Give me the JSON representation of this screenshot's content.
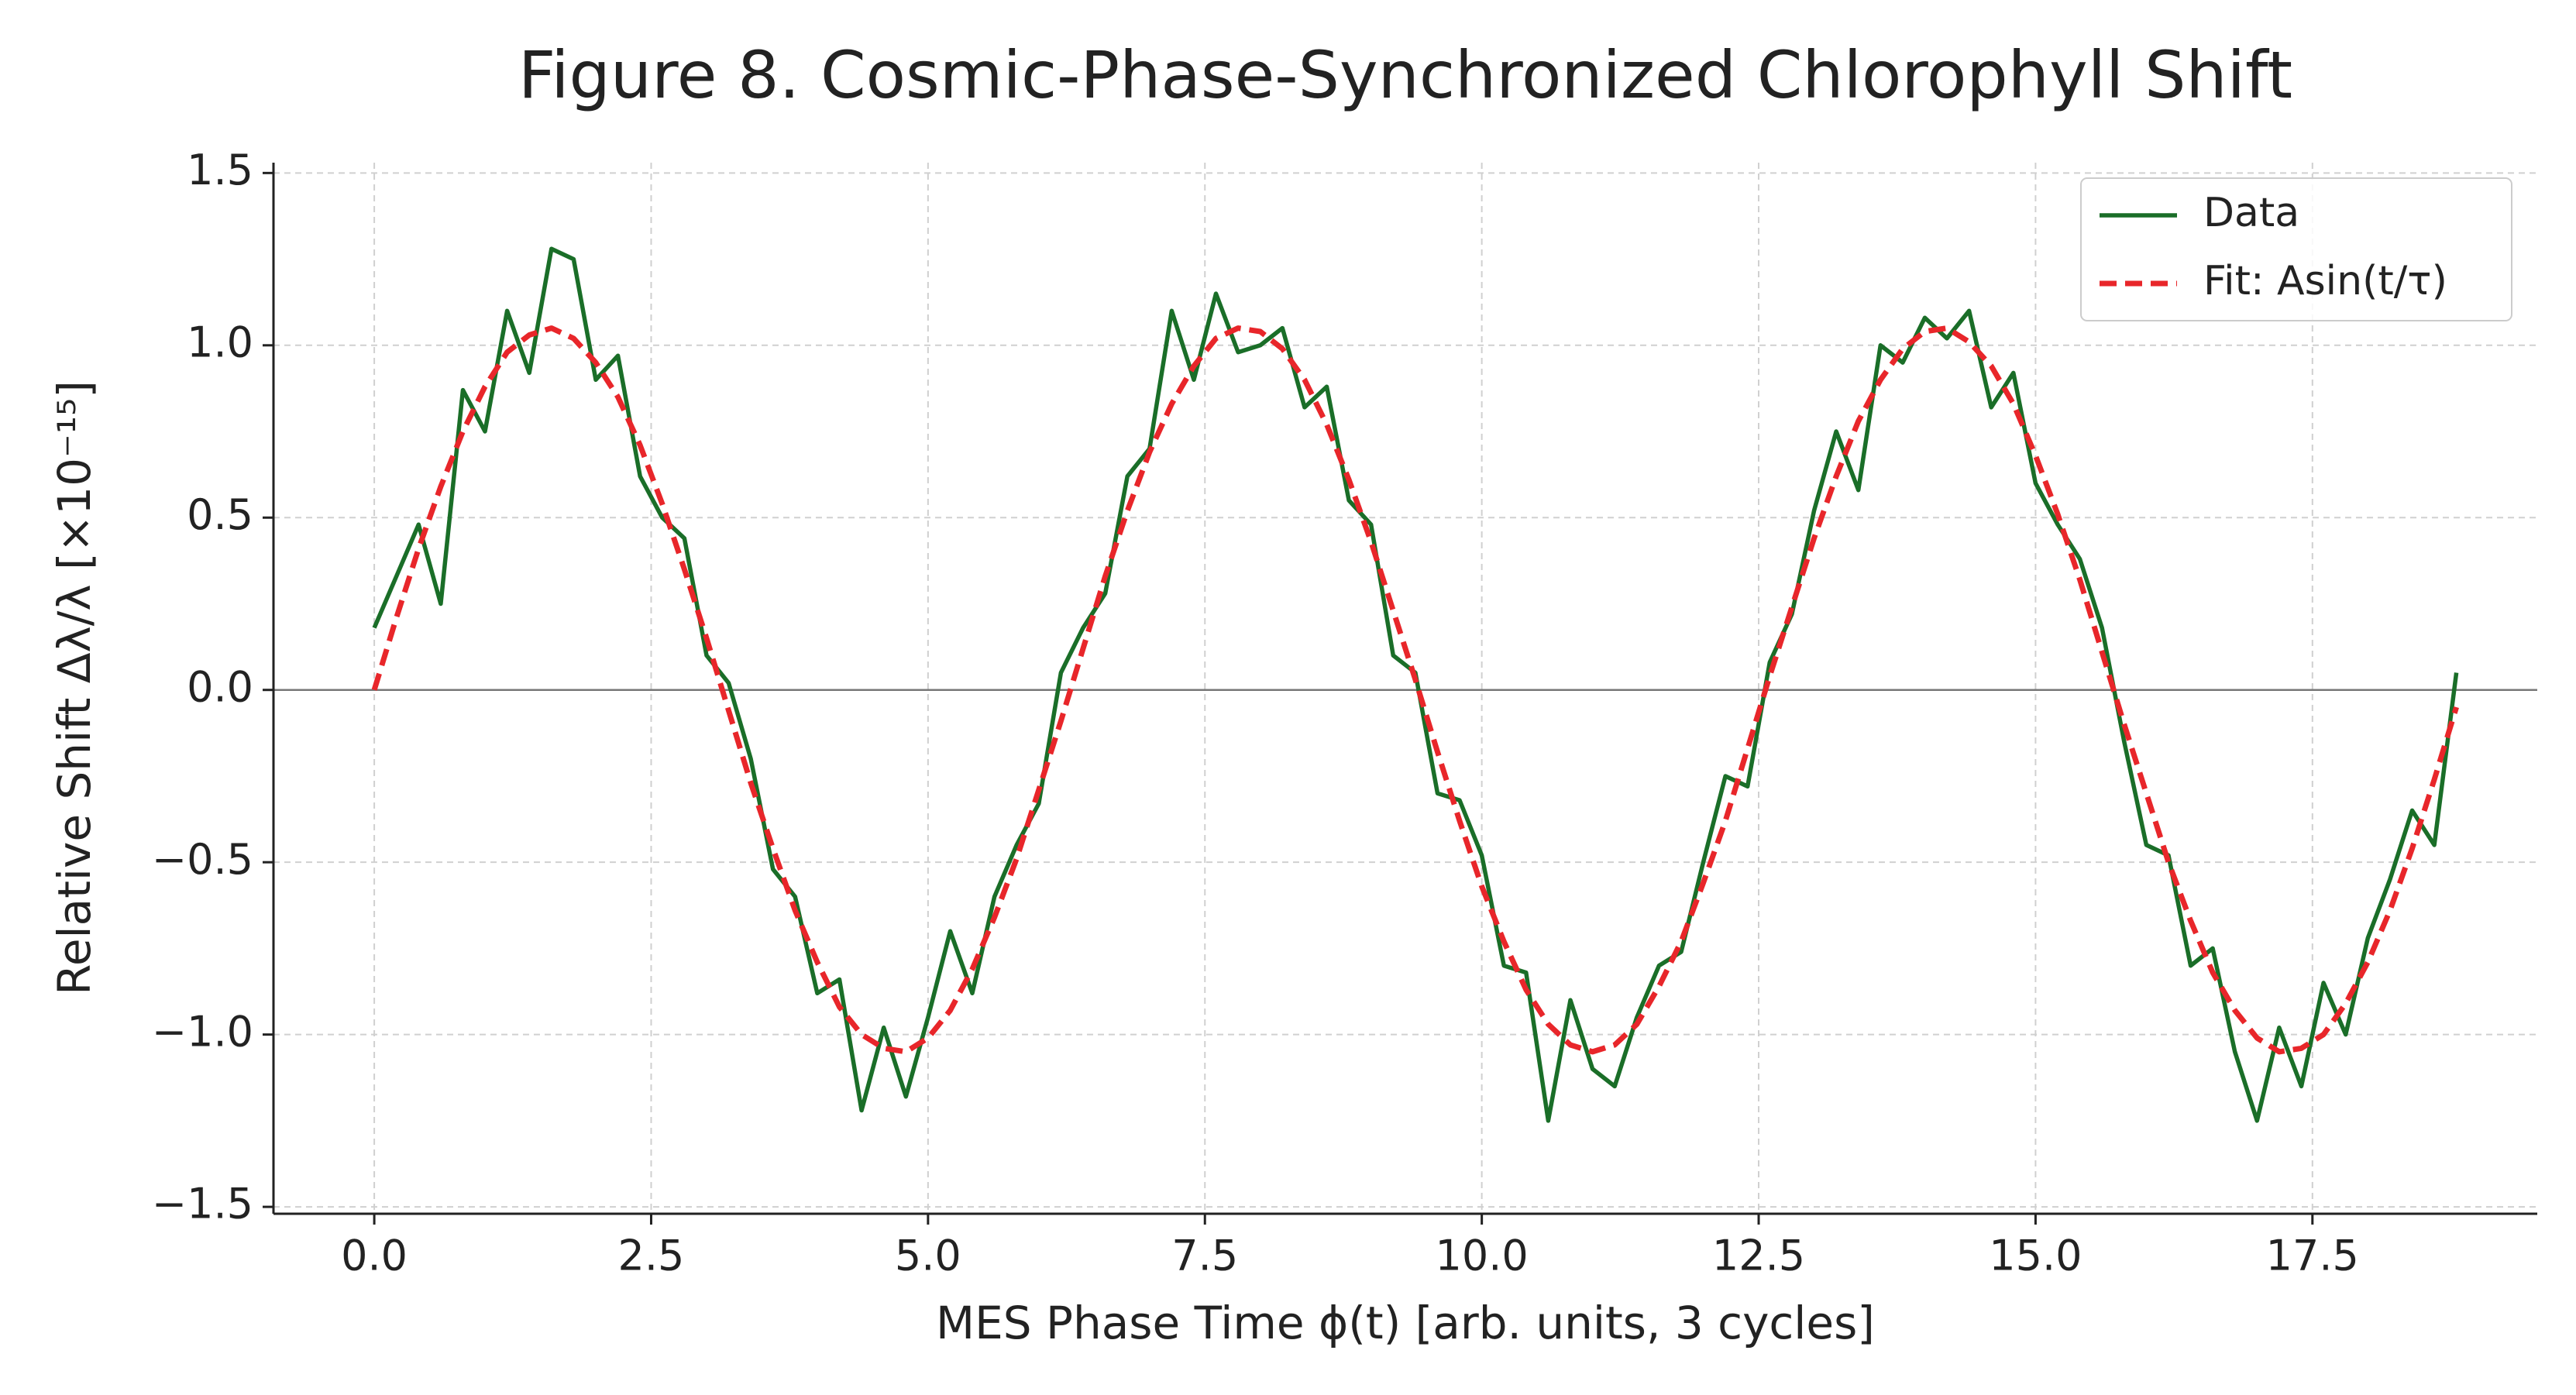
{
  "chart_data": {
    "type": "line",
    "title": "Figure 8. Cosmic-Phase-Synchronized Chlorophyll Shift",
    "xlabel": "MES Phase Time ϕ(t) [arb. units, 3 cycles]",
    "ylabel": "Relative Shift Δλ/λ [×10⁻¹⁵]",
    "x": [
      0,
      0.2,
      0.4,
      0.6,
      0.8,
      1.0,
      1.2,
      1.4,
      1.6,
      1.8,
      2.0,
      2.2,
      2.4,
      2.6,
      2.8,
      3.0,
      3.2,
      3.4,
      3.6,
      3.8,
      4.0,
      4.2,
      4.4,
      4.6,
      4.8,
      5.0,
      5.2,
      5.4,
      5.6,
      5.8,
      6.0,
      6.2,
      6.4,
      6.6,
      6.8,
      7.0,
      7.2,
      7.4,
      7.6,
      7.8,
      8.0,
      8.2,
      8.4,
      8.6,
      8.8,
      9.0,
      9.2,
      9.4,
      9.6,
      9.8,
      10.0,
      10.2,
      10.4,
      10.6,
      10.8,
      11.0,
      11.2,
      11.4,
      11.6,
      11.8,
      12.0,
      12.2,
      12.4,
      12.6,
      12.8,
      13.0,
      13.2,
      13.4,
      13.6,
      13.8,
      14.0,
      14.2,
      14.4,
      14.6,
      14.8,
      15.0,
      15.2,
      15.4,
      15.6,
      15.8,
      16.0,
      16.2,
      16.4,
      16.6,
      16.8,
      17.0,
      17.2,
      17.4,
      17.6,
      17.8,
      18.0,
      18.2,
      18.4,
      18.6,
      18.8
    ],
    "series": [
      {
        "name": "Data",
        "color": "#1a6e28",
        "style": "solid",
        "values": [
          0.18,
          0.33,
          0.48,
          0.25,
          0.87,
          0.75,
          1.1,
          0.92,
          1.28,
          1.25,
          0.9,
          0.97,
          0.62,
          0.5,
          0.44,
          0.1,
          0.02,
          -0.2,
          -0.52,
          -0.6,
          -0.88,
          -0.84,
          -1.22,
          -0.98,
          -1.18,
          -0.95,
          -0.7,
          -0.88,
          -0.6,
          -0.45,
          -0.33,
          0.05,
          0.18,
          0.28,
          0.62,
          0.7,
          1.1,
          0.9,
          1.15,
          0.98,
          1.0,
          1.05,
          0.82,
          0.88,
          0.55,
          0.48,
          0.1,
          0.05,
          -0.3,
          -0.32,
          -0.48,
          -0.8,
          -0.82,
          -1.25,
          -0.9,
          -1.1,
          -1.15,
          -0.95,
          -0.8,
          -0.76,
          -0.5,
          -0.25,
          -0.28,
          0.08,
          0.22,
          0.52,
          0.75,
          0.58,
          1.0,
          0.95,
          1.08,
          1.02,
          1.1,
          0.82,
          0.92,
          0.6,
          0.48,
          0.38,
          0.18,
          -0.15,
          -0.45,
          -0.48,
          -0.8,
          -0.75,
          -1.05,
          -1.25,
          -0.98,
          -1.15,
          -0.85,
          -1.0,
          -0.72,
          -0.55,
          -0.35,
          -0.45,
          0.05
        ]
      },
      {
        "name": "Fit: Asin(t/τ)",
        "color": "#e8262a",
        "style": "dashed",
        "values": [
          0,
          0.21,
          0.41,
          0.59,
          0.75,
          0.88,
          0.98,
          1.03,
          1.05,
          1.02,
          0.95,
          0.85,
          0.71,
          0.54,
          0.35,
          0.15,
          -0.06,
          -0.27,
          -0.46,
          -0.64,
          -0.79,
          -0.92,
          -1.0,
          -1.04,
          -1.05,
          -1.01,
          -0.93,
          -0.81,
          -0.66,
          -0.49,
          -0.29,
          -0.09,
          0.12,
          0.33,
          0.52,
          0.69,
          0.83,
          0.94,
          1.02,
          1.05,
          1.04,
          0.99,
          0.9,
          0.77,
          0.61,
          0.43,
          0.23,
          0.03,
          -0.18,
          -0.38,
          -0.57,
          -0.73,
          -0.87,
          -0.97,
          -1.03,
          -1.05,
          -1.03,
          -0.97,
          -0.86,
          -0.73,
          -0.56,
          -0.38,
          -0.17,
          0.04,
          0.24,
          0.44,
          0.62,
          0.78,
          0.9,
          0.99,
          1.04,
          1.05,
          1.01,
          0.94,
          0.83,
          0.68,
          0.51,
          0.32,
          0.11,
          -0.1,
          -0.3,
          -0.5,
          -0.67,
          -0.82,
          -0.93,
          -1.01,
          -1.05,
          -1.04,
          -1.0,
          -0.91,
          -0.79,
          -0.64,
          -0.46,
          -0.26,
          -0.05
        ]
      }
    ],
    "xlim": [
      -0.91,
      19.53
    ],
    "ylim": [
      -1.52,
      1.53
    ],
    "xticks": [
      {
        "value": 0,
        "label": "0.0"
      },
      2.5,
      {
        "value": 5,
        "label": "5.0"
      },
      7.5,
      {
        "value": 10,
        "label": "10.0"
      },
      12.5,
      {
        "value": 15,
        "label": "15.0"
      },
      17.5
    ],
    "yticks": [
      {
        "value": -1.5,
        "label": "−1.5"
      },
      {
        "value": -1,
        "label": "−1.0"
      },
      {
        "value": -0.5,
        "label": "−0.5"
      },
      {
        "value": 0,
        "label": "0.0"
      },
      0.5,
      {
        "value": 1,
        "label": "1.0"
      },
      1.5
    ],
    "axhline": 0,
    "grid": true,
    "legend": "upper right"
  }
}
